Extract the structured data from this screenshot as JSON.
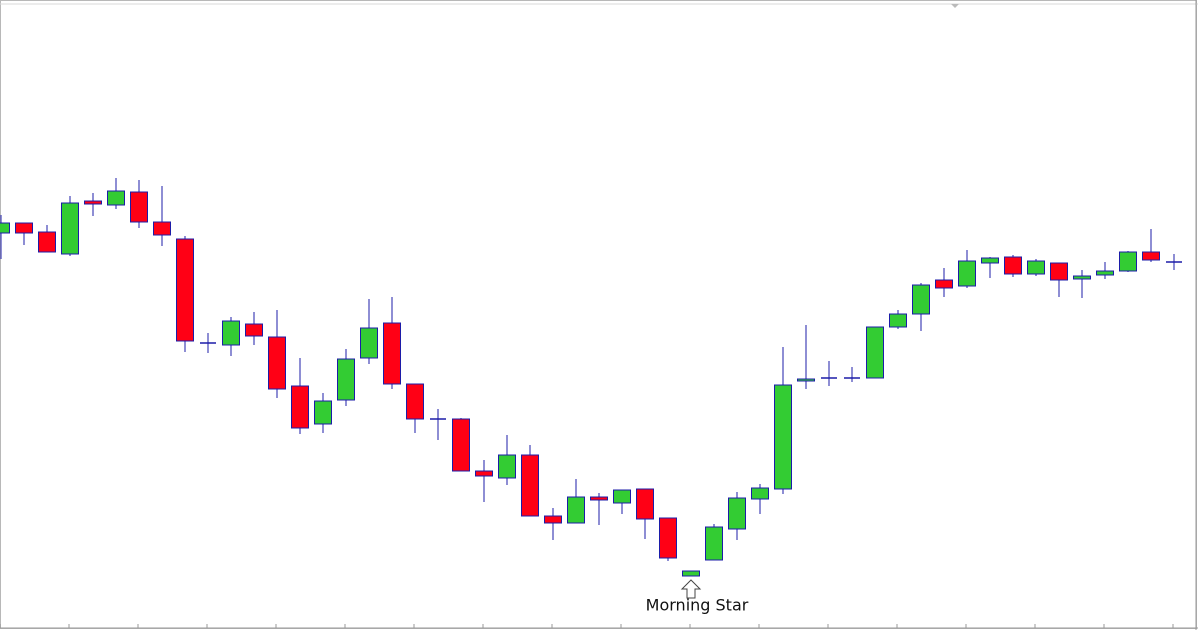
{
  "chart_data": {
    "type": "candlestick",
    "open": [
      397,
      407,
      398,
      376,
      429,
      425,
      438,
      408,
      391,
      287,
      285,
      306,
      293,
      244,
      206,
      230,
      272,
      307,
      246,
      211,
      211,
      159,
      152,
      175,
      114,
      107,
      133,
      127,
      141,
      112,
      54,
      70,
      101,
      131,
      141,
      249,
      252,
      252,
      252,
      303,
      316,
      350,
      344,
      367,
      373,
      356,
      367,
      351,
      355,
      359,
      378,
      368
    ],
    "high": [
      415,
      407,
      405,
      434,
      437,
      452,
      450,
      444,
      394,
      297,
      313,
      318,
      320,
      272,
      237,
      281,
      331,
      333,
      246,
      221,
      212,
      170,
      195,
      185,
      122,
      151,
      137,
      140,
      141,
      112,
      59,
      106,
      138,
      146,
      283,
      305,
      269,
      263,
      303,
      320,
      347,
      362,
      380,
      373,
      375,
      371,
      367,
      360,
      368,
      379,
      401,
      376
    ],
    "low": [
      371,
      385,
      378,
      374,
      414,
      421,
      402,
      384,
      278,
      277,
      274,
      285,
      232,
      196,
      197,
      224,
      266,
      241,
      197,
      190,
      159,
      128,
      145,
      114,
      90,
      107,
      105,
      116,
      91,
      69,
      54,
      70,
      90,
      116,
      136,
      241,
      244,
      248,
      252,
      301,
      299,
      333,
      342,
      352,
      353,
      354,
      333,
      332,
      351,
      358,
      368,
      360
    ],
    "close": [
      407,
      397,
      378,
      427,
      426,
      439,
      408,
      395,
      289,
      287,
      309,
      294,
      241,
      202,
      229,
      271,
      302,
      246,
      211,
      211,
      159,
      154,
      175,
      114,
      107,
      133,
      130,
      140,
      111,
      72,
      59,
      103,
      132,
      142,
      245,
      251,
      252,
      252,
      303,
      316,
      345,
      342,
      369,
      372,
      356,
      369,
      350,
      354,
      359,
      378,
      370,
      368
    ],
    "ylim": [
      0,
      630
    ],
    "up_color": "#33cc33",
    "down_color": "#ff0015",
    "outline_color": "#1c1ca8",
    "annotations": [
      {
        "text": "Morning Star"
      }
    ]
  }
}
